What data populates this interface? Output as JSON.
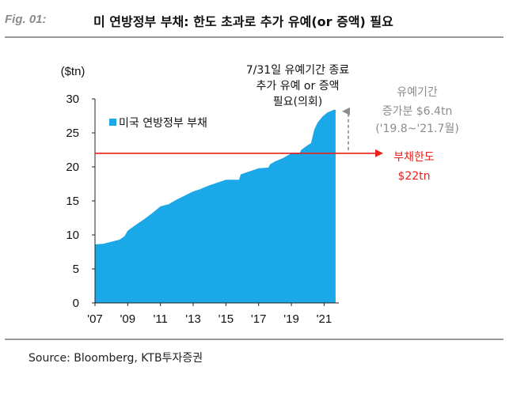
{
  "figure": {
    "label": "Fig. 01:",
    "title": "미 연방정부 부채: 한도 초과로 추가 유예(or 증액) 필요"
  },
  "source": "Source: Bloomberg, KTB투자증권",
  "colors": {
    "area": "#1aa8e8",
    "limit_line": "#e8201a",
    "arrow_gray": "#8c8c8c"
  },
  "chart_data": {
    "type": "area",
    "ylabel": "($tn)",
    "ylim": [
      0,
      30
    ],
    "yticks": [
      0,
      5,
      10,
      15,
      20,
      25,
      30
    ],
    "xlim": [
      2007,
      2021.9
    ],
    "xticks": [
      {
        "value": 2007,
        "label": "'07"
      },
      {
        "value": 2009,
        "label": "'09"
      },
      {
        "value": 2011,
        "label": "'11"
      },
      {
        "value": 2013,
        "label": "'13"
      },
      {
        "value": 2015,
        "label": "'15"
      },
      {
        "value": 2017,
        "label": "'17"
      },
      {
        "value": 2019,
        "label": "'19"
      },
      {
        "value": 2021,
        "label": "'21"
      }
    ],
    "series": [
      {
        "name": "미국 연방정부 부채",
        "points": [
          [
            2007.0,
            8.6
          ],
          [
            2007.5,
            8.7
          ],
          [
            2008.0,
            9.0
          ],
          [
            2008.5,
            9.3
          ],
          [
            2008.8,
            9.8
          ],
          [
            2009.0,
            10.6
          ],
          [
            2009.5,
            11.5
          ],
          [
            2010.0,
            12.3
          ],
          [
            2010.5,
            13.2
          ],
          [
            2011.0,
            14.2
          ],
          [
            2011.5,
            14.5
          ],
          [
            2011.7,
            14.8
          ],
          [
            2012.0,
            15.2
          ],
          [
            2012.5,
            15.8
          ],
          [
            2013.0,
            16.4
          ],
          [
            2013.4,
            16.7
          ],
          [
            2013.8,
            17.1
          ],
          [
            2014.0,
            17.3
          ],
          [
            2014.5,
            17.7
          ],
          [
            2015.0,
            18.1
          ],
          [
            2015.8,
            18.1
          ],
          [
            2015.9,
            18.9
          ],
          [
            2016.5,
            19.4
          ],
          [
            2017.0,
            19.8
          ],
          [
            2017.6,
            19.9
          ],
          [
            2017.7,
            20.4
          ],
          [
            2018.0,
            20.8
          ],
          [
            2018.5,
            21.3
          ],
          [
            2019.0,
            22.0
          ],
          [
            2019.5,
            22.0
          ],
          [
            2019.6,
            22.5
          ],
          [
            2020.0,
            23.2
          ],
          [
            2020.2,
            23.5
          ],
          [
            2020.4,
            25.5
          ],
          [
            2020.6,
            26.5
          ],
          [
            2020.9,
            27.4
          ],
          [
            2021.2,
            28.0
          ],
          [
            2021.6,
            28.4
          ],
          [
            2021.7,
            28.4
          ]
        ]
      }
    ],
    "reference_line": {
      "value": 22,
      "label": "부채한도",
      "value_label": "$22tn"
    },
    "annotations": {
      "top": [
        "7/31일 유예기간 종료",
        "추가 유예 or 증액",
        "필요(의회)"
      ],
      "gray": [
        "유예기간",
        "증가분 $6.4tn",
        "('19.8~'21.7월)"
      ]
    }
  }
}
